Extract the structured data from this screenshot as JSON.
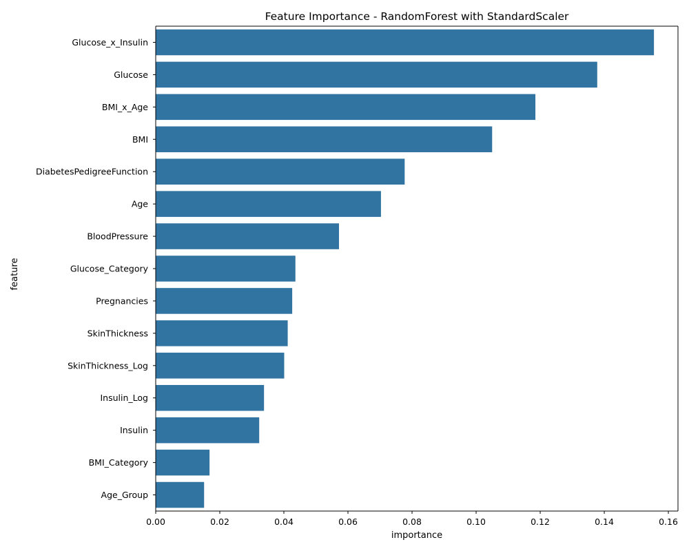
{
  "chart_data": {
    "type": "bar",
    "orientation": "horizontal",
    "title": "Feature Importance - RandomForest with StandardScaler",
    "xlabel": "importance",
    "ylabel": "feature",
    "xlim": [
      0,
      0.163
    ],
    "xticks": [
      0.0,
      0.02,
      0.04,
      0.06,
      0.08,
      0.1,
      0.12,
      0.14,
      0.16
    ],
    "xtick_labels": [
      "0.00",
      "0.02",
      "0.04",
      "0.06",
      "0.08",
      "0.10",
      "0.12",
      "0.14",
      "0.16"
    ],
    "grid": false,
    "bar_color": "#3274a1",
    "categories": [
      "Glucose_x_Insulin",
      "Glucose",
      "BMI_x_Age",
      "BMI",
      "DiabetesPedigreeFunction",
      "Age",
      "BloodPressure",
      "Glucose_Category",
      "Pregnancies",
      "SkinThickness",
      "SkinThickness_Log",
      "Insulin_Log",
      "Insulin",
      "BMI_Category",
      "Age_Group"
    ],
    "values": [
      0.1555,
      0.1378,
      0.1185,
      0.105,
      0.0777,
      0.0703,
      0.0572,
      0.0436,
      0.0426,
      0.0412,
      0.0401,
      0.0338,
      0.0323,
      0.0168,
      0.0151
    ]
  }
}
